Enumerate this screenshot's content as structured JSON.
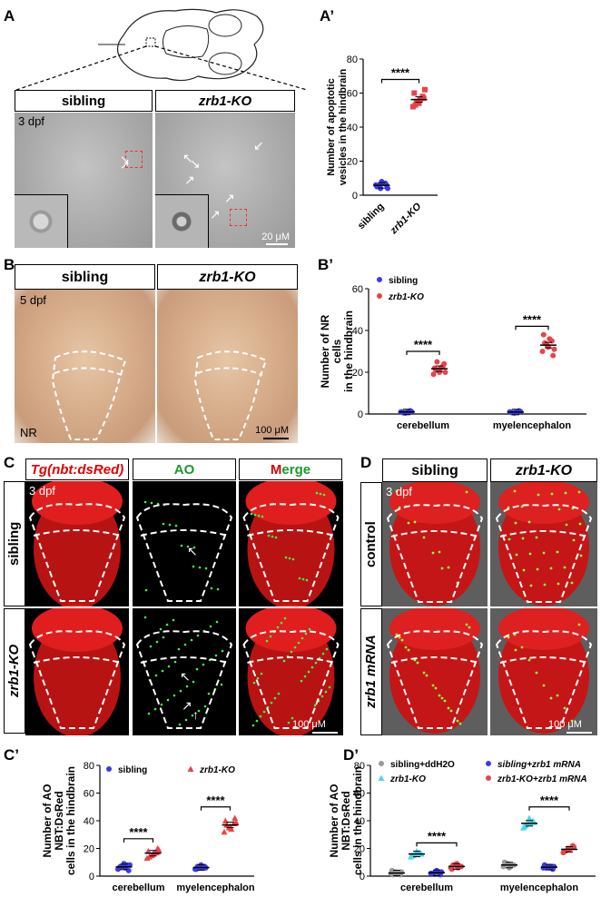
{
  "panels": {
    "A": {
      "label": "A",
      "headers": [
        "sibling",
        "zrb1-KO"
      ],
      "stage": "3 dpf",
      "scale": "20 μM"
    },
    "B": {
      "label": "B",
      "headers": [
        "sibling",
        "zrb1-KO"
      ],
      "stage": "5 dpf",
      "stain": "NR",
      "scale": "100 μM"
    },
    "C": {
      "label": "C",
      "headers": [
        "Tg(nbt:dsRed)",
        "AO",
        "Merge"
      ],
      "merge_m": "M",
      "merge_rest": "erge",
      "stage": "3 dpf",
      "rows": [
        "sibling",
        "zrb1-KO"
      ],
      "scale": "100 μM"
    },
    "D": {
      "label": "D",
      "headers": [
        "sibling",
        "zrb1-KO"
      ],
      "stage": "3 dpf",
      "rows": [
        "control",
        "zrb1 mRNA"
      ],
      "scale": "100 μM"
    }
  },
  "chart_data": [
    {
      "id": "A'",
      "type": "scatter",
      "label": "A’",
      "ylabel": "Number of apoptotic vesicles in the hindbrain",
      "ylabel_lines": [
        "Number of apoptotic",
        "vesicles in the hindbrain"
      ],
      "ylim": [
        0,
        80
      ],
      "yticks": [
        0,
        20,
        40,
        60,
        80
      ],
      "categories": [
        "sibling",
        "zrb1-KO"
      ],
      "series": [
        {
          "name": "sibling",
          "color": "#3a3ae6",
          "marker": "circle",
          "values": [
            [
              6,
              4,
              7,
              5,
              8,
              6,
              5,
              7,
              4,
              6
            ]
          ]
        },
        {
          "name": "zrb1-KO",
          "color": "#e8434a",
          "marker": "square",
          "values": [
            [
              52,
              55,
              58,
              60,
              54,
              57,
              53,
              56,
              62,
              55
            ]
          ]
        }
      ],
      "significance": [
        {
          "between": [
            "sibling",
            "zrb1-KO"
          ],
          "text": "****",
          "y": 68
        }
      ]
    },
    {
      "id": "B'",
      "type": "scatter",
      "label": "B’",
      "ylabel": "Number of NR+ cells in the hindbrain",
      "ylabel_lines": [
        "Number of NR",
        "cells",
        "in the hindbrain"
      ],
      "ylim": [
        0,
        60
      ],
      "yticks": [
        0,
        20,
        40,
        60
      ],
      "categories": [
        "cerebellum",
        "myelencephalon"
      ],
      "legend": [
        "sibling",
        "zrb1-KO"
      ],
      "series": [
        {
          "name": "sibling",
          "color": "#3a3ae6",
          "values": [
            [
              1,
              0.5,
              1.5,
              1,
              0.8,
              1.2,
              0.6,
              1.1
            ],
            [
              1,
              0.5,
              1.5,
              1,
              0.8,
              1.2,
              0.6,
              1
            ]
          ]
        },
        {
          "name": "zrb1-KO",
          "color": "#e8434a",
          "values": [
            [
              19,
              21,
              23,
              22,
              20,
              24,
              21,
              22,
              20,
              25
            ],
            [
              30,
              33,
              35,
              38,
              32,
              28,
              34,
              36,
              31
            ]
          ]
        }
      ],
      "significance": [
        {
          "group": "cerebellum",
          "text": "****",
          "y": 30
        },
        {
          "group": "myelencephalon",
          "text": "****",
          "y": 42
        }
      ]
    },
    {
      "id": "C'",
      "type": "scatter",
      "label": "C’",
      "ylabel": "Number of AO+NBT:DsRed+ cells in the hindbrain",
      "ylabel_lines": [
        "Number of AO",
        "NBT:DsRed",
        "cells in the hindbrain"
      ],
      "ylim": [
        0,
        80
      ],
      "yticks": [
        0,
        20,
        40,
        60,
        80
      ],
      "categories": [
        "cerebellum",
        "myelencephalon"
      ],
      "legend": [
        "sibling",
        "zrb1-KO"
      ],
      "series": [
        {
          "name": "sibling",
          "color": "#3a3ae6",
          "values": [
            [
              5,
              7,
              8,
              6,
              9,
              4,
              7,
              6,
              8
            ],
            [
              5,
              6,
              7,
              5,
              8,
              6,
              7,
              6
            ]
          ]
        },
        {
          "name": "zrb1-KO",
          "color": "#e8434a",
          "marker": "triangle",
          "values": [
            [
              13,
              15,
              17,
              18,
              16,
              20,
              14,
              17,
              19
            ],
            [
              32,
              35,
              38,
              40,
              36,
              42,
              37,
              34,
              39
            ]
          ]
        }
      ],
      "significance": [
        {
          "group": "cerebellum",
          "text": "****",
          "y": 27
        },
        {
          "group": "myelencephalon",
          "text": "****",
          "y": 50
        }
      ]
    },
    {
      "id": "D'",
      "type": "scatter",
      "label": "D’",
      "ylabel": "Number of AO+NBT:DsRed+ cells in the hindbrain",
      "ylabel_lines": [
        "Number of AO",
        "NBT:DsRed",
        "cells  in the hindbrain"
      ],
      "ylim": [
        0,
        80
      ],
      "yticks": [
        0,
        20,
        40,
        60,
        80
      ],
      "categories": [
        "cerebellum",
        "myelencephalon"
      ],
      "legend": [
        "sibling+ddH2O",
        "zrb1-KO",
        "sibling+zrb1 mRNA",
        "zrb1-KO+zrb1 mRNA"
      ],
      "series": [
        {
          "name": "sibling+ddH2O",
          "color": "#9a9a9a",
          "values": [
            [
              2,
              3,
              1,
              4,
              2,
              3,
              1,
              2
            ],
            [
              7,
              9,
              8,
              10,
              6,
              8,
              9,
              7
            ]
          ]
        },
        {
          "name": "zrb1-KO",
          "color": "#4fd6e6",
          "marker": "triangle",
          "values": [
            [
              14,
              16,
              17,
              15,
              18,
              16,
              15,
              17
            ],
            [
              35,
              38,
              40,
              36,
              42,
              39,
              37,
              38
            ]
          ]
        },
        {
          "name": "sibling+zrb1 mRNA",
          "color": "#3a3ae6",
          "values": [
            [
              2,
              3,
              1,
              2,
              4,
              3,
              2,
              3
            ],
            [
              6,
              7,
              5,
              8,
              6,
              7,
              6,
              7
            ]
          ]
        },
        {
          "name": "zrb1-KO+zrb1 mRNA",
          "color": "#e8434a",
          "values": [
            [
              6,
              8,
              7,
              5,
              9,
              7,
              8,
              6
            ],
            [
              17,
              20,
              22,
              18,
              19,
              21,
              18,
              20
            ]
          ]
        }
      ],
      "significance": [
        {
          "group": "cerebellum",
          "text": "****",
          "y": 24
        },
        {
          "group": "myelencephalon",
          "text": "****",
          "y": 50
        }
      ]
    }
  ]
}
